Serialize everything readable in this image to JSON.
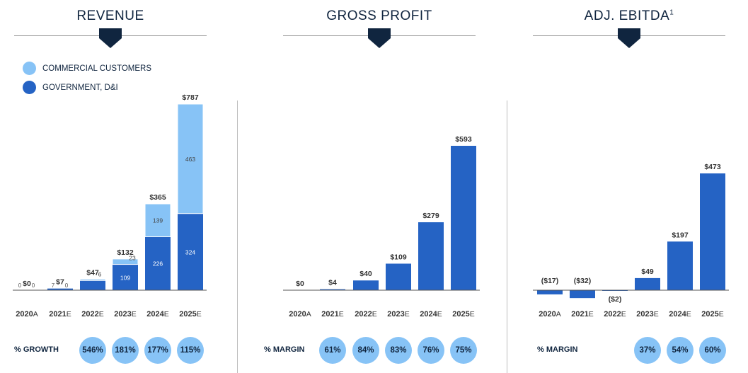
{
  "colors": {
    "dark": "#10253f",
    "gov": "#2563c4",
    "commercial": "#87c3f6",
    "circle": "#87c3f6"
  },
  "legend": {
    "commercial": "COMMERCIAL CUSTOMERS",
    "government": "GOVERNMENT, D&I"
  },
  "panels": {
    "revenue": {
      "title": "REVENUE",
      "row_label": "% GROWTH"
    },
    "gross_profit": {
      "title": "GROSS PROFIT",
      "row_label": "% MARGIN"
    },
    "ebitda": {
      "title": "ADJ. EBITDA",
      "footnote": "1",
      "row_label": "% MARGIN"
    }
  },
  "chart_data": [
    {
      "type": "bar",
      "title": "REVENUE",
      "categories": [
        "2020A",
        "2021E",
        "2022E",
        "2023E",
        "2024E",
        "2025E"
      ],
      "category_years": [
        "2020",
        "2021",
        "2022",
        "2023",
        "2024",
        "2025"
      ],
      "category_suffixes": [
        "A",
        "E",
        "E",
        "E",
        "E",
        "E"
      ],
      "series": [
        {
          "name": "GOVERNMENT, D&I",
          "values": [
            0,
            7,
            41,
            109,
            226,
            324
          ],
          "labels": [
            "0",
            "7",
            "41",
            "109",
            "226",
            "324"
          ]
        },
        {
          "name": "COMMERCIAL CUSTOMERS",
          "values": [
            0,
            0,
            6,
            23,
            139,
            463
          ],
          "labels": [
            "0",
            "0",
            "6",
            "23",
            "139",
            "463"
          ]
        }
      ],
      "totals": [
        "$0",
        "$7",
        "$47",
        "$132",
        "$365",
        "$787"
      ],
      "total_values": [
        0,
        7,
        47,
        132,
        365,
        787
      ],
      "stacked": true,
      "growth": [
        "",
        "",
        "546%",
        "181%",
        "177%",
        "115%"
      ]
    },
    {
      "type": "bar",
      "title": "GROSS PROFIT",
      "categories": [
        "2020A",
        "2021E",
        "2022E",
        "2023E",
        "2024E",
        "2025E"
      ],
      "category_years": [
        "2020",
        "2021",
        "2022",
        "2023",
        "2024",
        "2025"
      ],
      "category_suffixes": [
        "A",
        "E",
        "E",
        "E",
        "E",
        "E"
      ],
      "values": [
        0,
        4,
        40,
        109,
        279,
        593
      ],
      "labels": [
        "$0",
        "$4",
        "$40",
        "$109",
        "$279",
        "$593"
      ],
      "margin": [
        "",
        "61%",
        "84%",
        "83%",
        "76%",
        "75%"
      ]
    },
    {
      "type": "bar",
      "title": "ADJ. EBITDA",
      "categories": [
        "2020A",
        "2021E",
        "2022E",
        "2023E",
        "2024E",
        "2025E"
      ],
      "category_years": [
        "2020",
        "2021",
        "2022",
        "2023",
        "2024",
        "2025"
      ],
      "category_suffixes": [
        "A",
        "E",
        "E",
        "E",
        "E",
        "E"
      ],
      "values": [
        -17,
        -32,
        -2,
        49,
        197,
        473
      ],
      "labels": [
        "($17)",
        "($32)",
        "($2)",
        "$49",
        "$197",
        "$473"
      ],
      "margin": [
        "",
        "",
        "",
        "37%",
        "54%",
        "60%"
      ]
    }
  ]
}
